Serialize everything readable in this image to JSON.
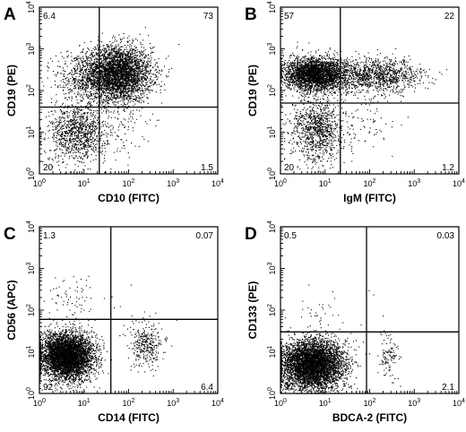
{
  "chart_data": [
    {
      "type": "scatter",
      "panel": "A",
      "xlabel": "CD10 (FITC)",
      "ylabel": "CD19 (PE)",
      "xscale": "log",
      "yscale": "log",
      "xlim": [
        1,
        10000
      ],
      "ylim": [
        1,
        10000
      ],
      "x_ticks": [
        "10^0",
        "10^1",
        "10^2",
        "10^3",
        "10^4"
      ],
      "y_ticks": [
        "10^0",
        "10^1",
        "10^2",
        "10^3",
        "10^4"
      ],
      "gate": {
        "x": 22,
        "y": 40
      },
      "quadrants": {
        "upper_left": "6.4",
        "upper_right": "73",
        "lower_left": "20",
        "lower_right": "1.5"
      },
      "clusters": [
        {
          "x_center": 55,
          "y_center": 250,
          "x_spread_decades": 0.38,
          "y_spread_decades": 0.33,
          "density": 0.73
        },
        {
          "x_center": 7,
          "y_center": 10,
          "x_spread_decades": 0.32,
          "y_spread_decades": 0.35,
          "density": 0.2
        },
        {
          "x_center": 8,
          "y_center": 200,
          "x_spread_decades": 0.3,
          "y_spread_decades": 0.35,
          "density": 0.064
        },
        {
          "x_center": 60,
          "y_center": 12,
          "x_spread_decades": 0.3,
          "y_spread_decades": 0.3,
          "density": 0.015
        }
      ],
      "point_color": "#000000"
    },
    {
      "type": "scatter",
      "panel": "B",
      "xlabel": "IgM (FITC)",
      "ylabel": "CD19 (PE)",
      "xscale": "log",
      "yscale": "log",
      "xlim": [
        1,
        10000
      ],
      "ylim": [
        1,
        10000
      ],
      "x_ticks": [
        "10^0",
        "10^1",
        "10^2",
        "10^3",
        "10^4"
      ],
      "y_ticks": [
        "10^0",
        "10^1",
        "10^2",
        "10^3",
        "10^4"
      ],
      "gate": {
        "x": 22,
        "y": 50
      },
      "quadrants": {
        "upper_left": "57",
        "upper_right": "22",
        "lower_left": "20",
        "lower_right": "1.2"
      },
      "clusters": [
        {
          "x_center": 6,
          "y_center": 250,
          "x_spread_decades": 0.35,
          "y_spread_decades": 0.2,
          "density": 0.57
        },
        {
          "x_center": 150,
          "y_center": 230,
          "x_spread_decades": 0.5,
          "y_spread_decades": 0.2,
          "density": 0.22
        },
        {
          "x_center": 7,
          "y_center": 12,
          "x_spread_decades": 0.3,
          "y_spread_decades": 0.4,
          "density": 0.2
        },
        {
          "x_center": 100,
          "y_center": 15,
          "x_spread_decades": 0.3,
          "y_spread_decades": 0.3,
          "density": 0.012
        }
      ],
      "point_color": "#000000"
    },
    {
      "type": "scatter",
      "panel": "C",
      "xlabel": "CD14 (FITC)",
      "ylabel": "CD56 (APC)",
      "xscale": "log",
      "yscale": "log",
      "xlim": [
        1,
        10000
      ],
      "ylim": [
        1,
        10000
      ],
      "x_ticks": [
        "10^0",
        "10^1",
        "10^2",
        "10^3",
        "10^4"
      ],
      "y_ticks": [
        "10^0",
        "10^1",
        "10^2",
        "10^3",
        "10^4"
      ],
      "gate": {
        "x": 40,
        "y": 60
      },
      "quadrants": {
        "upper_left": "1.3",
        "upper_right": "0.07",
        "lower_left": "92",
        "lower_right": "6.4"
      },
      "clusters": [
        {
          "x_center": 4,
          "y_center": 8,
          "x_spread_decades": 0.3,
          "y_spread_decades": 0.28,
          "density": 0.92
        },
        {
          "x_center": 250,
          "y_center": 15,
          "x_spread_decades": 0.2,
          "y_spread_decades": 0.25,
          "density": 0.064
        },
        {
          "x_center": 6,
          "y_center": 200,
          "x_spread_decades": 0.3,
          "y_spread_decades": 0.25,
          "density": 0.013
        },
        {
          "x_center": 150,
          "y_center": 200,
          "x_spread_decades": 0.3,
          "y_spread_decades": 0.3,
          "density": 0.0007
        }
      ],
      "point_color": "#000000"
    },
    {
      "type": "scatter",
      "panel": "D",
      "xlabel": "BDCA-2 (FITC)",
      "ylabel": "CD133 (PE)",
      "xscale": "log",
      "yscale": "log",
      "xlim": [
        1,
        10000
      ],
      "ylim": [
        1,
        10000
      ],
      "x_ticks": [
        "10^0",
        "10^1",
        "10^2",
        "10^3",
        "10^4"
      ],
      "y_ticks": [
        "10^0",
        "10^1",
        "10^2",
        "10^3",
        "10^4"
      ],
      "gate": {
        "x": 85,
        "y": 30
      },
      "quadrants": {
        "upper_left": "0.5",
        "upper_right": "0.03",
        "lower_left": "97",
        "lower_right": "2.1"
      },
      "clusters": [
        {
          "x_center": 5,
          "y_center": 5,
          "x_spread_decades": 0.35,
          "y_spread_decades": 0.3,
          "density": 0.97
        },
        {
          "x_center": 260,
          "y_center": 8,
          "x_spread_decades": 0.12,
          "y_spread_decades": 0.25,
          "density": 0.021
        },
        {
          "x_center": 8,
          "y_center": 90,
          "x_spread_decades": 0.3,
          "y_spread_decades": 0.2,
          "density": 0.005
        },
        {
          "x_center": 200,
          "y_center": 100,
          "x_spread_decades": 0.2,
          "y_spread_decades": 0.2,
          "density": 0.0003
        }
      ],
      "point_color": "#000000"
    }
  ]
}
